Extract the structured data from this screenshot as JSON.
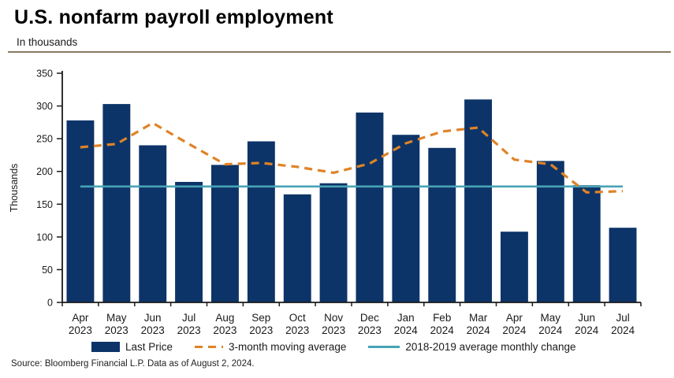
{
  "header": {
    "title": "U.S. nonfarm payroll employment",
    "subtitle": "In thousands"
  },
  "legend": {
    "items": [
      {
        "label": "Last Price",
        "swatch": "bar",
        "color": "#0d3468"
      },
      {
        "label": "3-month moving average",
        "swatch": "dashed-line",
        "color": "#df8327"
      },
      {
        "label": "2018-2019 average monthly change",
        "swatch": "solid-line",
        "color": "#47a3b6"
      }
    ]
  },
  "source": "Source: Bloomberg Financial L.P. Data as of August 2, 2024.",
  "colors": {
    "bar": "#0d3468",
    "moving_average": "#df8327",
    "baseline": "#47a3b6",
    "header_rule": "#8a7862",
    "axis": "#1a1a1a"
  },
  "chart_data": {
    "type": "bar",
    "title": "U.S. nonfarm payroll employment",
    "subtitle": "In thousands",
    "xlabel": "",
    "ylabel": "Thousands",
    "ylim": [
      0,
      350
    ],
    "ytick_interval": 50,
    "grid": false,
    "legend_position": "bottom",
    "categories": [
      "Apr 2023",
      "May 2023",
      "Jun 2023",
      "Jul 2023",
      "Aug 2023",
      "Sep 2023",
      "Oct 2023",
      "Nov 2023",
      "Dec 2023",
      "Jan 2024",
      "Feb 2024",
      "Mar 2024",
      "Apr 2024",
      "May 2024",
      "Jun 2024",
      "Jul 2024"
    ],
    "series": [
      {
        "name": "Last Price",
        "type": "bar",
        "color": "#0d3468",
        "values": [
          278,
          303,
          240,
          184,
          210,
          246,
          165,
          182,
          290,
          256,
          236,
          310,
          108,
          216,
          179,
          114
        ]
      },
      {
        "name": "3-month moving average",
        "type": "line",
        "style": "dashed",
        "color": "#df8327",
        "values": [
          237,
          242,
          274,
          242,
          211,
          213,
          207,
          198,
          212,
          243,
          261,
          267,
          218,
          211,
          168,
          170
        ]
      },
      {
        "name": "2018-2019 average monthly change",
        "type": "hline",
        "color": "#47a3b6",
        "value": 177
      }
    ]
  }
}
